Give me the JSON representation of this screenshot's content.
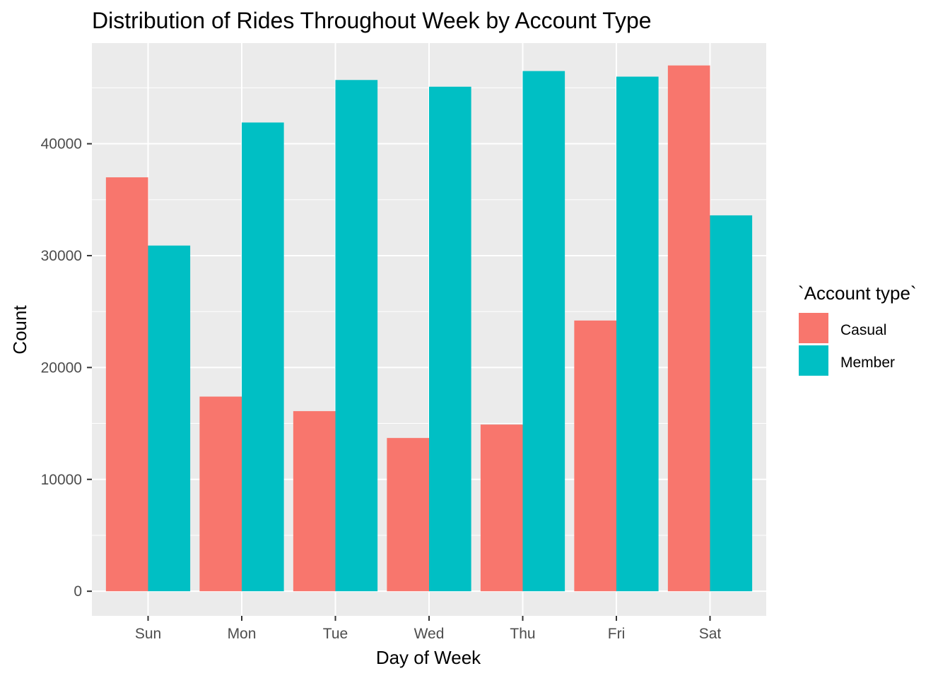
{
  "chart_data": {
    "type": "bar",
    "title": "Distribution of Rides Throughout Week by Account Type",
    "xlabel": "Day of Week",
    "ylabel": "Count",
    "categories": [
      "Sun",
      "Mon",
      "Tue",
      "Wed",
      "Thu",
      "Fri",
      "Sat"
    ],
    "series": [
      {
        "name": "Casual",
        "color": "#F8766D",
        "values": [
          37000,
          17400,
          16100,
          13700,
          14900,
          24200,
          47000
        ]
      },
      {
        "name": "Member",
        "color": "#00BFC4",
        "values": [
          30900,
          41900,
          45700,
          45100,
          46500,
          46000,
          33600
        ]
      }
    ],
    "ylim": [
      -2200,
      49000
    ],
    "yticks": [
      0,
      10000,
      20000,
      30000,
      40000
    ],
    "ytick_labels": [
      "0",
      "10000",
      "20000",
      "30000",
      "40000"
    ],
    "grid": true,
    "legend": {
      "title": "`Account type`",
      "placement": "right"
    },
    "panel_background": "#EBEBEB",
    "grid_color": "#FFFFFF"
  }
}
